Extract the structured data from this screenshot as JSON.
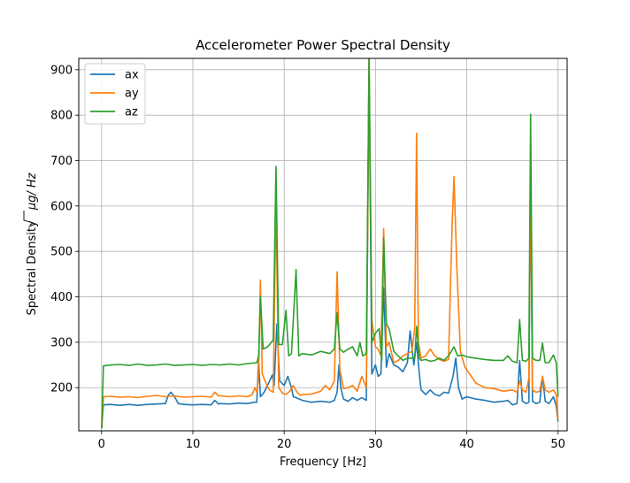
{
  "chart_data": {
    "type": "line",
    "title": "Accelerometer Power Spectral Density",
    "xlabel": "Frequency [Hz]",
    "ylabel_prefix": "Spectral Density",
    "ylabel_unit_main": "μg/",
    "ylabel_unit_sqrt": "Hz",
    "xlim": [
      -2.5,
      51
    ],
    "ylim": [
      105,
      925
    ],
    "xticks": [
      0,
      10,
      20,
      30,
      40,
      50
    ],
    "yticks": [
      200,
      300,
      400,
      500,
      600,
      700,
      800,
      900
    ],
    "grid": true,
    "legend_position": "top-left",
    "series": [
      {
        "name": "ax",
        "color": "#1f77b4",
        "points": [
          [
            0,
            110
          ],
          [
            0.2,
            162
          ],
          [
            1,
            163
          ],
          [
            2,
            161
          ],
          [
            3,
            163
          ],
          [
            4,
            161
          ],
          [
            5,
            163
          ],
          [
            6,
            164
          ],
          [
            7,
            165
          ],
          [
            7.3,
            183
          ],
          [
            7.6,
            190
          ],
          [
            8,
            180
          ],
          [
            8.4,
            165
          ],
          [
            9,
            163
          ],
          [
            10,
            162
          ],
          [
            11,
            163
          ],
          [
            12,
            162
          ],
          [
            12.4,
            172
          ],
          [
            12.8,
            164
          ],
          [
            13,
            165
          ],
          [
            14,
            164
          ],
          [
            15,
            166
          ],
          [
            16,
            165
          ],
          [
            16.7,
            168
          ],
          [
            17,
            168
          ],
          [
            17.2,
            260
          ],
          [
            17.4,
            180
          ],
          [
            17.8,
            190
          ],
          [
            18.3,
            210
          ],
          [
            18.7,
            228
          ],
          [
            18.9,
            205
          ],
          [
            19.2,
            340
          ],
          [
            19.5,
            215
          ],
          [
            20,
            205
          ],
          [
            20.4,
            225
          ],
          [
            20.8,
            200
          ],
          [
            21,
            180
          ],
          [
            21.3,
            178
          ],
          [
            22,
            172
          ],
          [
            22.5,
            170
          ],
          [
            23,
            168
          ],
          [
            24,
            170
          ],
          [
            25,
            168
          ],
          [
            25.5,
            172
          ],
          [
            25.8,
            190
          ],
          [
            26,
            250
          ],
          [
            26.2,
            200
          ],
          [
            26.5,
            175
          ],
          [
            27,
            170
          ],
          [
            27.5,
            178
          ],
          [
            28,
            172
          ],
          [
            28.5,
            178
          ],
          [
            29,
            172
          ],
          [
            29.3,
            925
          ],
          [
            29.6,
            230
          ],
          [
            30,
            250
          ],
          [
            30.3,
            225
          ],
          [
            30.6,
            230
          ],
          [
            30.9,
            420
          ],
          [
            31.2,
            245
          ],
          [
            31.5,
            275
          ],
          [
            32,
            250
          ],
          [
            32.5,
            245
          ],
          [
            33,
            235
          ],
          [
            33.5,
            255
          ],
          [
            33.8,
            325
          ],
          [
            34.2,
            250
          ],
          [
            34.5,
            300
          ],
          [
            34.8,
            230
          ],
          [
            35,
            195
          ],
          [
            35.5,
            185
          ],
          [
            36,
            195
          ],
          [
            36.5,
            185
          ],
          [
            37,
            182
          ],
          [
            37.5,
            190
          ],
          [
            38,
            188
          ],
          [
            38.5,
            225
          ],
          [
            38.8,
            265
          ],
          [
            39.1,
            200
          ],
          [
            39.5,
            175
          ],
          [
            40,
            180
          ],
          [
            41,
            175
          ],
          [
            42,
            172
          ],
          [
            43,
            168
          ],
          [
            44,
            170
          ],
          [
            44.5,
            172
          ],
          [
            45,
            162
          ],
          [
            45.5,
            165
          ],
          [
            45.8,
            260
          ],
          [
            46.1,
            170
          ],
          [
            46.5,
            165
          ],
          [
            46.8,
            168
          ],
          [
            47,
            670
          ],
          [
            47.2,
            170
          ],
          [
            47.6,
            165
          ],
          [
            48,
            168
          ],
          [
            48.3,
            225
          ],
          [
            48.6,
            170
          ],
          [
            49,
            165
          ],
          [
            49.5,
            180
          ],
          [
            49.8,
            160
          ],
          [
            50,
            125
          ]
        ]
      },
      {
        "name": "ay",
        "color": "#ff7f0e",
        "points": [
          [
            0,
            110
          ],
          [
            0.2,
            180
          ],
          [
            1,
            181
          ],
          [
            2,
            179
          ],
          [
            3,
            180
          ],
          [
            4,
            178
          ],
          [
            5,
            181
          ],
          [
            6,
            183
          ],
          [
            7,
            180
          ],
          [
            8,
            182
          ],
          [
            9,
            179
          ],
          [
            10,
            180
          ],
          [
            11,
            181
          ],
          [
            12,
            179
          ],
          [
            12.4,
            190
          ],
          [
            12.8,
            182
          ],
          [
            13,
            182
          ],
          [
            14,
            180
          ],
          [
            15,
            182
          ],
          [
            16,
            180
          ],
          [
            16.5,
            185
          ],
          [
            16.8,
            200
          ],
          [
            17,
            190
          ],
          [
            17.2,
            225
          ],
          [
            17.4,
            437
          ],
          [
            17.6,
            230
          ],
          [
            18,
            210
          ],
          [
            18.4,
            195
          ],
          [
            18.8,
            190
          ],
          [
            19.1,
            605
          ],
          [
            19.4,
            200
          ],
          [
            19.8,
            188
          ],
          [
            20.2,
            185
          ],
          [
            20.6,
            192
          ],
          [
            21,
            205
          ],
          [
            21.4,
            190
          ],
          [
            21.8,
            183
          ],
          [
            22,
            185
          ],
          [
            23,
            186
          ],
          [
            24,
            192
          ],
          [
            24.5,
            205
          ],
          [
            25,
            195
          ],
          [
            25.5,
            215
          ],
          [
            25.8,
            455
          ],
          [
            26.1,
            240
          ],
          [
            26.5,
            198
          ],
          [
            27,
            200
          ],
          [
            27.5,
            205
          ],
          [
            28,
            192
          ],
          [
            28.5,
            225
          ],
          [
            29,
            200
          ],
          [
            29.3,
            925
          ],
          [
            29.6,
            350
          ],
          [
            30,
            290
          ],
          [
            30.3,
            285
          ],
          [
            30.6,
            270
          ],
          [
            30.9,
            550
          ],
          [
            31.2,
            290
          ],
          [
            31.5,
            300
          ],
          [
            32,
            255
          ],
          [
            32.5,
            260
          ],
          [
            33,
            270
          ],
          [
            33.5,
            275
          ],
          [
            34,
            280
          ],
          [
            34.3,
            330
          ],
          [
            34.5,
            760
          ],
          [
            34.7,
            300
          ],
          [
            35,
            265
          ],
          [
            35.5,
            270
          ],
          [
            36,
            285
          ],
          [
            36.5,
            270
          ],
          [
            37,
            262
          ],
          [
            37.5,
            258
          ],
          [
            38,
            262
          ],
          [
            38.4,
            560
          ],
          [
            38.6,
            665
          ],
          [
            38.9,
            470
          ],
          [
            39.3,
            280
          ],
          [
            39.8,
            245
          ],
          [
            40.5,
            225
          ],
          [
            41,
            210
          ],
          [
            42,
            200
          ],
          [
            43,
            198
          ],
          [
            44,
            192
          ],
          [
            45,
            195
          ],
          [
            45.5,
            190
          ],
          [
            45.8,
            215
          ],
          [
            46.1,
            195
          ],
          [
            46.5,
            190
          ],
          [
            46.8,
            220
          ],
          [
            47,
            670
          ],
          [
            47.2,
            195
          ],
          [
            47.6,
            190
          ],
          [
            48,
            192
          ],
          [
            48.3,
            225
          ],
          [
            48.6,
            195
          ],
          [
            49,
            190
          ],
          [
            49.5,
            195
          ],
          [
            49.8,
            185
          ],
          [
            50,
            130
          ]
        ]
      },
      {
        "name": "az",
        "color": "#2ca02c",
        "points": [
          [
            0,
            110
          ],
          [
            0.2,
            248
          ],
          [
            1,
            250
          ],
          [
            2,
            251
          ],
          [
            3,
            249
          ],
          [
            4,
            252
          ],
          [
            5,
            249
          ],
          [
            6,
            250
          ],
          [
            7,
            252
          ],
          [
            8,
            249
          ],
          [
            9,
            250
          ],
          [
            10,
            251
          ],
          [
            11,
            249
          ],
          [
            12,
            251
          ],
          [
            13,
            250
          ],
          [
            14,
            252
          ],
          [
            15,
            250
          ],
          [
            16,
            253
          ],
          [
            17,
            255
          ],
          [
            17.2,
            270
          ],
          [
            17.4,
            400
          ],
          [
            17.7,
            285
          ],
          [
            18.2,
            290
          ],
          [
            18.6,
            300
          ],
          [
            18.8,
            305
          ],
          [
            19.1,
            687
          ],
          [
            19.4,
            295
          ],
          [
            19.8,
            295
          ],
          [
            20,
            330
          ],
          [
            20.2,
            370
          ],
          [
            20.5,
            270
          ],
          [
            20.8,
            275
          ],
          [
            21.3,
            460
          ],
          [
            21.6,
            270
          ],
          [
            22,
            275
          ],
          [
            23,
            272
          ],
          [
            24,
            280
          ],
          [
            25,
            275
          ],
          [
            25.5,
            285
          ],
          [
            25.8,
            365
          ],
          [
            26.1,
            285
          ],
          [
            26.5,
            278
          ],
          [
            27,
            285
          ],
          [
            27.5,
            290
          ],
          [
            28,
            270
          ],
          [
            28.3,
            300
          ],
          [
            28.6,
            270
          ],
          [
            29,
            275
          ],
          [
            29.3,
            925
          ],
          [
            29.6,
            300
          ],
          [
            30,
            320
          ],
          [
            30.4,
            330
          ],
          [
            30.7,
            260
          ],
          [
            30.9,
            530
          ],
          [
            31.2,
            340
          ],
          [
            31.5,
            330
          ],
          [
            32,
            280
          ],
          [
            32.5,
            270
          ],
          [
            33,
            260
          ],
          [
            33.5,
            265
          ],
          [
            34,
            265
          ],
          [
            34.3,
            265
          ],
          [
            34.5,
            335
          ],
          [
            34.8,
            265
          ],
          [
            35,
            260
          ],
          [
            35.5,
            262
          ],
          [
            36,
            258
          ],
          [
            36.5,
            260
          ],
          [
            37,
            265
          ],
          [
            37.5,
            260
          ],
          [
            38,
            270
          ],
          [
            38.6,
            290
          ],
          [
            39,
            270
          ],
          [
            39.5,
            272
          ],
          [
            40,
            268
          ],
          [
            41,
            265
          ],
          [
            42,
            262
          ],
          [
            43,
            260
          ],
          [
            44,
            260
          ],
          [
            44.5,
            270
          ],
          [
            45,
            258
          ],
          [
            45.5,
            255
          ],
          [
            45.8,
            350
          ],
          [
            46.1,
            260
          ],
          [
            46.5,
            258
          ],
          [
            46.8,
            265
          ],
          [
            47,
            802
          ],
          [
            47.2,
            265
          ],
          [
            47.6,
            260
          ],
          [
            48,
            260
          ],
          [
            48.3,
            298
          ],
          [
            48.6,
            255
          ],
          [
            49,
            255
          ],
          [
            49.5,
            272
          ],
          [
            49.8,
            255
          ],
          [
            50,
            180
          ]
        ]
      }
    ]
  }
}
